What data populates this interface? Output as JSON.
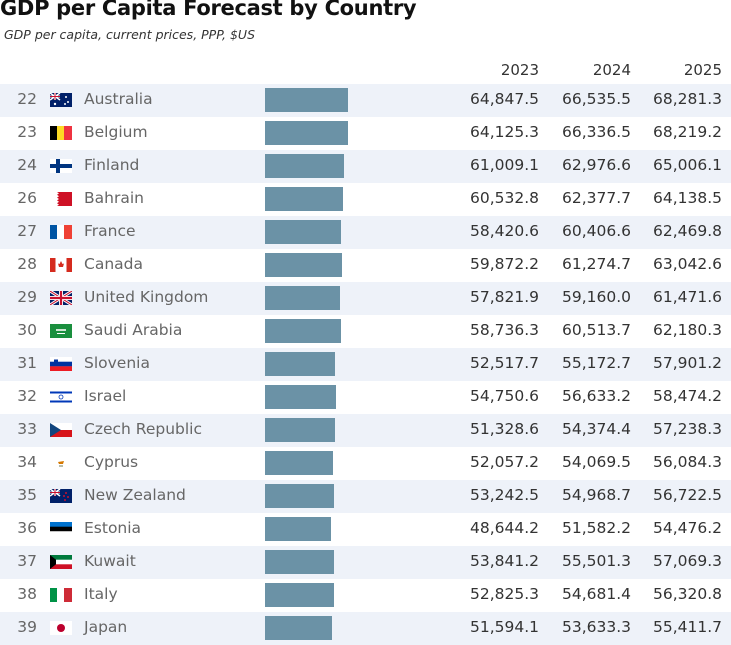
{
  "title": "GDP per Capita Forecast by Country",
  "subtitle": "GDP per capita, current prices, PPP, $US",
  "columns": [
    "2023",
    "2024",
    "2025"
  ],
  "bar_color": "#6b92a6",
  "rows": [
    {
      "rank": "22",
      "flag": "au-flag",
      "country": "Australia",
      "v2023": "64,847.5",
      "v2024": "66,535.5",
      "v2025": "68,281.3",
      "bar": 68281.3
    },
    {
      "rank": "23",
      "flag": "be-flag",
      "country": "Belgium",
      "v2023": "64,125.3",
      "v2024": "66,336.5",
      "v2025": "68,219.2",
      "bar": 68219.2
    },
    {
      "rank": "24",
      "flag": "fi-flag",
      "country": "Finland",
      "v2023": "61,009.1",
      "v2024": "62,976.6",
      "v2025": "65,006.1",
      "bar": 65006.1
    },
    {
      "rank": "26",
      "flag": "bh-flag",
      "country": "Bahrain",
      "v2023": "60,532.8",
      "v2024": "62,377.7",
      "v2025": "64,138.5",
      "bar": 64138.5
    },
    {
      "rank": "27",
      "flag": "fr-flag",
      "country": "France",
      "v2023": "58,420.6",
      "v2024": "60,406.6",
      "v2025": "62,469.8",
      "bar": 62469.8
    },
    {
      "rank": "28",
      "flag": "ca-flag",
      "country": "Canada",
      "v2023": "59,872.2",
      "v2024": "61,274.7",
      "v2025": "63,042.6",
      "bar": 63042.6
    },
    {
      "rank": "29",
      "flag": "gb-flag",
      "country": "United Kingdom",
      "v2023": "57,821.9",
      "v2024": "59,160.0",
      "v2025": "61,471.6",
      "bar": 61471.6
    },
    {
      "rank": "30",
      "flag": "sa-flag",
      "country": "Saudi Arabia",
      "v2023": "58,736.3",
      "v2024": "60,513.7",
      "v2025": "62,180.3",
      "bar": 62180.3
    },
    {
      "rank": "31",
      "flag": "si-flag",
      "country": "Slovenia",
      "v2023": "52,517.7",
      "v2024": "55,172.7",
      "v2025": "57,901.2",
      "bar": 57901.2
    },
    {
      "rank": "32",
      "flag": "il-flag",
      "country": "Israel",
      "v2023": "54,750.6",
      "v2024": "56,633.2",
      "v2025": "58,474.2",
      "bar": 58474.2
    },
    {
      "rank": "33",
      "flag": "cz-flag",
      "country": "Czech Republic",
      "v2023": "51,328.6",
      "v2024": "54,374.4",
      "v2025": "57,238.3",
      "bar": 57238.3
    },
    {
      "rank": "34",
      "flag": "cy-flag",
      "country": "Cyprus",
      "v2023": "52,057.2",
      "v2024": "54,069.5",
      "v2025": "56,084.3",
      "bar": 56084.3
    },
    {
      "rank": "35",
      "flag": "nz-flag",
      "country": "New Zealand",
      "v2023": "53,242.5",
      "v2024": "54,968.7",
      "v2025": "56,722.5",
      "bar": 56722.5
    },
    {
      "rank": "36",
      "flag": "ee-flag",
      "country": "Estonia",
      "v2023": "48,644.2",
      "v2024": "51,582.2",
      "v2025": "54,476.2",
      "bar": 54476.2
    },
    {
      "rank": "37",
      "flag": "kw-flag",
      "country": "Kuwait",
      "v2023": "53,841.2",
      "v2024": "55,501.3",
      "v2025": "57,069.3",
      "bar": 57069.3
    },
    {
      "rank": "38",
      "flag": "it-flag",
      "country": "Italy",
      "v2023": "52,825.3",
      "v2024": "54,681.4",
      "v2025": "56,320.8",
      "bar": 56320.8
    },
    {
      "rank": "39",
      "flag": "jp-flag",
      "country": "Japan",
      "v2023": "51,594.1",
      "v2024": "53,633.3",
      "v2025": "55,411.7",
      "bar": 55411.7
    }
  ]
}
